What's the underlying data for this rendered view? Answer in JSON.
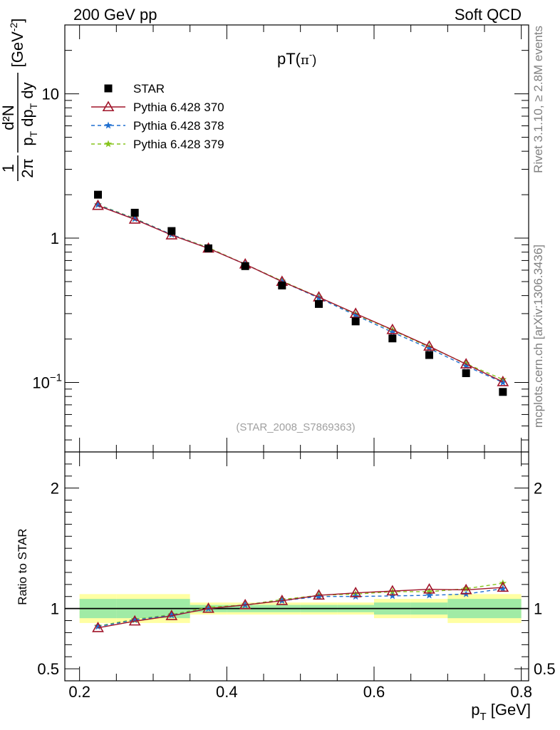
{
  "header": {
    "left": "200 GeV pp",
    "right": "Soft QCD"
  },
  "side_labels": {
    "rivet": "Rivet 3.1.10, ≥ 2.8M events",
    "mcplots": "mcplots.cern.ch [arXiv:1306.3436]"
  },
  "chart_data": [
    {
      "type": "scatter",
      "title": "pT(π⁻)",
      "title_main": "pT(",
      "title_sym": "π",
      "title_sup": "-",
      "title_close": ")",
      "annotation": "(STAR_2008_S7869363)",
      "ylabel_unit": "[GeV",
      "ylabel_unit_sup": "-2",
      "ylabel_unit_close": "]",
      "y_scale": "log",
      "xlim": [
        0.18,
        0.81
      ],
      "ylim": [
        0.033,
        30
      ],
      "x_ticks": [
        0.2,
        0.4,
        0.6,
        0.8
      ],
      "y_tick_labels": [
        {
          "value": 0.1,
          "base": "10",
          "exp": "−1"
        },
        {
          "value": 1,
          "base": "1",
          "exp": ""
        },
        {
          "value": 10,
          "base": "10",
          "exp": ""
        }
      ],
      "legend_position": "top-left",
      "x": [
        0.225,
        0.275,
        0.325,
        0.375,
        0.425,
        0.475,
        0.525,
        0.575,
        0.625,
        0.675,
        0.725,
        0.775
      ],
      "series": [
        {
          "name": "STAR",
          "color": "#000000",
          "marker": "square",
          "values": [
            2.0,
            1.5,
            1.12,
            0.85,
            0.64,
            0.47,
            0.35,
            0.265,
            0.202,
            0.155,
            0.116,
            0.086
          ]
        },
        {
          "name": "Pythia 6.428 370",
          "color": "#a0152a",
          "marker": "open-triangle",
          "line": "solid",
          "values": [
            1.68,
            1.35,
            1.05,
            0.85,
            0.66,
            0.5,
            0.39,
            0.3,
            0.232,
            0.178,
            0.134,
            0.101
          ]
        },
        {
          "name": "Pythia 6.428 378",
          "color": "#1f6fd0",
          "marker": "star",
          "line": "dashed",
          "values": [
            1.7,
            1.36,
            1.06,
            0.85,
            0.66,
            0.5,
            0.385,
            0.292,
            0.223,
            0.172,
            0.13,
            0.1
          ]
        },
        {
          "name": "Pythia 6.428 379",
          "color": "#86c41c",
          "marker": "star",
          "line": "dashed",
          "values": [
            1.71,
            1.37,
            1.06,
            0.86,
            0.66,
            0.505,
            0.39,
            0.297,
            0.23,
            0.176,
            0.135,
            0.105
          ]
        }
      ]
    },
    {
      "type": "scatter",
      "ylabel": "Ratio to STAR",
      "xlabel_main": "p",
      "xlabel_sub": "T",
      "xlabel_unit": " [GeV]",
      "ylim": [
        0.4,
        2.3
      ],
      "y_ticks": [
        0.5,
        1,
        2
      ],
      "x": [
        0.225,
        0.275,
        0.325,
        0.375,
        0.425,
        0.475,
        0.525,
        0.575,
        0.625,
        0.675,
        0.725,
        0.775
      ],
      "band_yellow": [
        0.12,
        0.12,
        0.12,
        0.05,
        0.05,
        0.05,
        0.05,
        0.05,
        0.08,
        0.08,
        0.12,
        0.12
      ],
      "band_green": [
        0.08,
        0.08,
        0.08,
        0.03,
        0.03,
        0.03,
        0.03,
        0.03,
        0.05,
        0.05,
        0.08,
        0.08
      ],
      "series": [
        {
          "name": "Pythia 6.428 370",
          "color": "#a0152a",
          "marker": "open-triangle",
          "line": "solid",
          "values": [
            0.84,
            0.895,
            0.94,
            1.0,
            1.03,
            1.065,
            1.11,
            1.13,
            1.145,
            1.16,
            1.155,
            1.175
          ]
        },
        {
          "name": "Pythia 6.428 378",
          "color": "#1f6fd0",
          "marker": "star",
          "line": "dashed",
          "values": [
            0.85,
            0.905,
            0.945,
            1.0,
            1.03,
            1.065,
            1.1,
            1.1,
            1.105,
            1.11,
            1.12,
            1.165
          ]
        },
        {
          "name": "Pythia 6.428 379",
          "color": "#86c41c",
          "marker": "star",
          "line": "dashed",
          "values": [
            0.855,
            0.91,
            0.95,
            1.01,
            1.03,
            1.075,
            1.11,
            1.12,
            1.14,
            1.14,
            1.165,
            1.21
          ]
        }
      ]
    }
  ]
}
